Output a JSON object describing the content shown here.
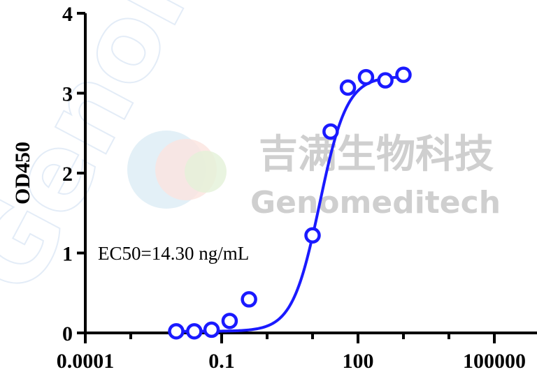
{
  "chart_data": {
    "type": "scatter",
    "title": "",
    "xlabel": "",
    "ylabel": "OD450",
    "xscale": "log",
    "xlim": [
      0.0001,
      100000
    ],
    "ylim": [
      0,
      4
    ],
    "xticks": [
      0.0001,
      0.1,
      100,
      100000
    ],
    "xtick_labels": [
      "0.0001",
      "0.1",
      "100",
      "100000"
    ],
    "yticks": [
      0,
      1,
      2,
      3,
      4
    ],
    "ytick_labels": [
      "0",
      "1",
      "2",
      "3",
      "4"
    ],
    "grid": false,
    "annotation": "EC50=14.30 ng/mL",
    "series": [
      {
        "marker": "open-circle",
        "fit": "four-parameter logistic",
        "color": "#1a1aff",
        "x": [
          0.01,
          0.025,
          0.06,
          0.15,
          0.4,
          10,
          25,
          60,
          150,
          400,
          1000
        ],
        "y": [
          0.02,
          0.02,
          0.04,
          0.15,
          0.42,
          1.22,
          2.52,
          3.07,
          3.2,
          3.16,
          3.23
        ]
      }
    ]
  },
  "watermark": {
    "chinese": "吉满生物科技",
    "english": "Genomeditech"
  }
}
